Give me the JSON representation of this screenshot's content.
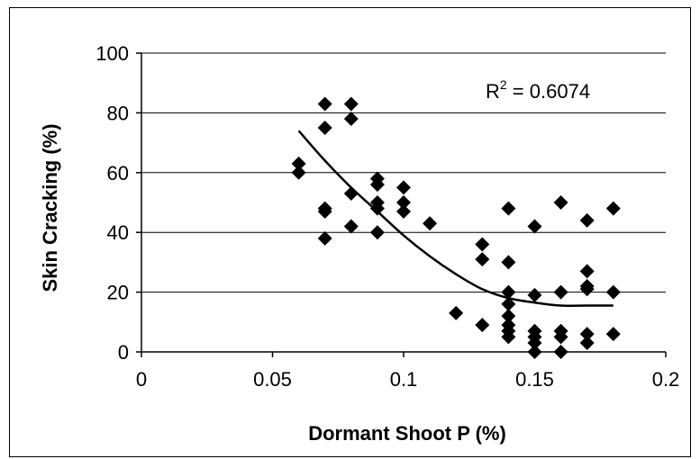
{
  "chart_data": {
    "type": "scatter",
    "xlabel": "Dormant Shoot P (%)",
    "ylabel": "Skin Cracking (%)",
    "xlim": [
      0,
      0.2
    ],
    "ylim": [
      0,
      100
    ],
    "x_ticks": [
      "0",
      "0.05",
      "0.1",
      "0.15",
      "0.2"
    ],
    "y_ticks": [
      "0",
      "20",
      "40",
      "60",
      "80",
      "100"
    ],
    "x_tick_values": [
      0,
      0.05,
      0.1,
      0.15,
      0.2
    ],
    "y_tick_values": [
      0,
      20,
      40,
      60,
      80,
      100
    ],
    "grid": "horizontal",
    "annotation": {
      "base": "R",
      "superscript": "2",
      "rest": " = 0.6074"
    },
    "marker_color": "#000000",
    "series": [
      {
        "marker": "diamond",
        "points": [
          [
            0.06,
            63
          ],
          [
            0.06,
            60
          ],
          [
            0.07,
            83
          ],
          [
            0.07,
            75
          ],
          [
            0.07,
            48
          ],
          [
            0.07,
            47
          ],
          [
            0.07,
            38
          ],
          [
            0.08,
            83
          ],
          [
            0.08,
            78
          ],
          [
            0.08,
            53
          ],
          [
            0.08,
            42
          ],
          [
            0.09,
            58
          ],
          [
            0.09,
            56
          ],
          [
            0.09,
            50
          ],
          [
            0.09,
            48
          ],
          [
            0.09,
            40
          ],
          [
            0.1,
            55
          ],
          [
            0.1,
            50
          ],
          [
            0.1,
            47
          ],
          [
            0.11,
            43
          ],
          [
            0.12,
            13
          ],
          [
            0.13,
            36
          ],
          [
            0.13,
            31
          ],
          [
            0.13,
            9
          ],
          [
            0.14,
            48
          ],
          [
            0.14,
            30
          ],
          [
            0.14,
            20
          ],
          [
            0.14,
            16
          ],
          [
            0.14,
            12
          ],
          [
            0.14,
            9
          ],
          [
            0.14,
            7
          ],
          [
            0.14,
            5
          ],
          [
            0.15,
            42
          ],
          [
            0.15,
            19
          ],
          [
            0.15,
            7
          ],
          [
            0.15,
            5
          ],
          [
            0.15,
            3
          ],
          [
            0.15,
            0
          ],
          [
            0.16,
            50
          ],
          [
            0.16,
            20
          ],
          [
            0.16,
            7
          ],
          [
            0.16,
            5
          ],
          [
            0.16,
            0
          ],
          [
            0.17,
            44
          ],
          [
            0.17,
            27
          ],
          [
            0.17,
            22
          ],
          [
            0.17,
            21
          ],
          [
            0.17,
            6
          ],
          [
            0.17,
            3
          ],
          [
            0.18,
            48
          ],
          [
            0.18,
            20
          ],
          [
            0.18,
            6
          ]
        ]
      }
    ],
    "trendline": {
      "type": "polynomial",
      "x_range": [
        0.06,
        0.18
      ],
      "points": [
        [
          0.06,
          74
        ],
        [
          0.07,
          64
        ],
        [
          0.08,
          55
        ],
        [
          0.09,
          47
        ],
        [
          0.1,
          39
        ],
        [
          0.11,
          32
        ],
        [
          0.12,
          26
        ],
        [
          0.13,
          21
        ],
        [
          0.14,
          18
        ],
        [
          0.15,
          16.5
        ],
        [
          0.16,
          15.5
        ],
        [
          0.17,
          15.5
        ],
        [
          0.18,
          15.5
        ]
      ]
    }
  }
}
